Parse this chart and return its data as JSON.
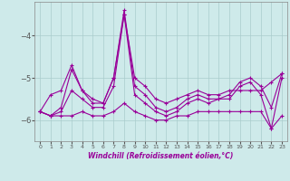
{
  "x": [
    0,
    1,
    2,
    3,
    4,
    5,
    6,
    7,
    8,
    9,
    10,
    11,
    12,
    13,
    14,
    15,
    16,
    17,
    18,
    19,
    20,
    21,
    22,
    23
  ],
  "line1": [
    -5.8,
    -5.4,
    -5.3,
    -4.7,
    -5.3,
    -5.5,
    -5.6,
    -5.0,
    -3.5,
    -5.0,
    -5.2,
    -5.5,
    -5.6,
    -5.5,
    -5.4,
    -5.3,
    -5.4,
    -5.4,
    -5.3,
    -5.3,
    -5.3,
    -5.3,
    -5.1,
    -4.9
  ],
  "line2": [
    -5.8,
    -5.9,
    -5.7,
    -4.8,
    -5.3,
    -5.6,
    -5.6,
    -5.0,
    -3.4,
    -5.2,
    -5.4,
    -5.7,
    -5.8,
    -5.7,
    -5.5,
    -5.4,
    -5.5,
    -5.5,
    -5.4,
    -5.1,
    -5.0,
    -5.2,
    -5.7,
    -4.9
  ],
  "line3": [
    -5.8,
    -5.9,
    -5.8,
    -5.3,
    -5.5,
    -5.7,
    -5.7,
    -5.2,
    -3.5,
    -5.4,
    -5.6,
    -5.8,
    -5.9,
    -5.8,
    -5.6,
    -5.5,
    -5.6,
    -5.5,
    -5.5,
    -5.2,
    -5.1,
    -5.4,
    -6.2,
    -5.0
  ],
  "line4": [
    -5.8,
    -5.9,
    -5.9,
    -5.9,
    -5.8,
    -5.9,
    -5.9,
    -5.8,
    -5.6,
    -5.8,
    -5.9,
    -6.0,
    -6.0,
    -5.9,
    -5.9,
    -5.8,
    -5.8,
    -5.8,
    -5.8,
    -5.8,
    -5.8,
    -5.8,
    -6.2,
    -5.9
  ],
  "bg_color": "#ceeaea",
  "line_color": "#990099",
  "grid_color": "#aacccc",
  "xlabel": "Windchill (Refroidissement éolien,°C)",
  "ylim": [
    -6.5,
    -3.2
  ],
  "xlim": [
    -0.5,
    23.5
  ],
  "yticks": [
    -6,
    -5,
    -4
  ],
  "xticks": [
    0,
    1,
    2,
    3,
    4,
    5,
    6,
    7,
    8,
    9,
    10,
    11,
    12,
    13,
    14,
    15,
    16,
    17,
    18,
    19,
    20,
    21,
    22,
    23
  ],
  "marker": "+"
}
